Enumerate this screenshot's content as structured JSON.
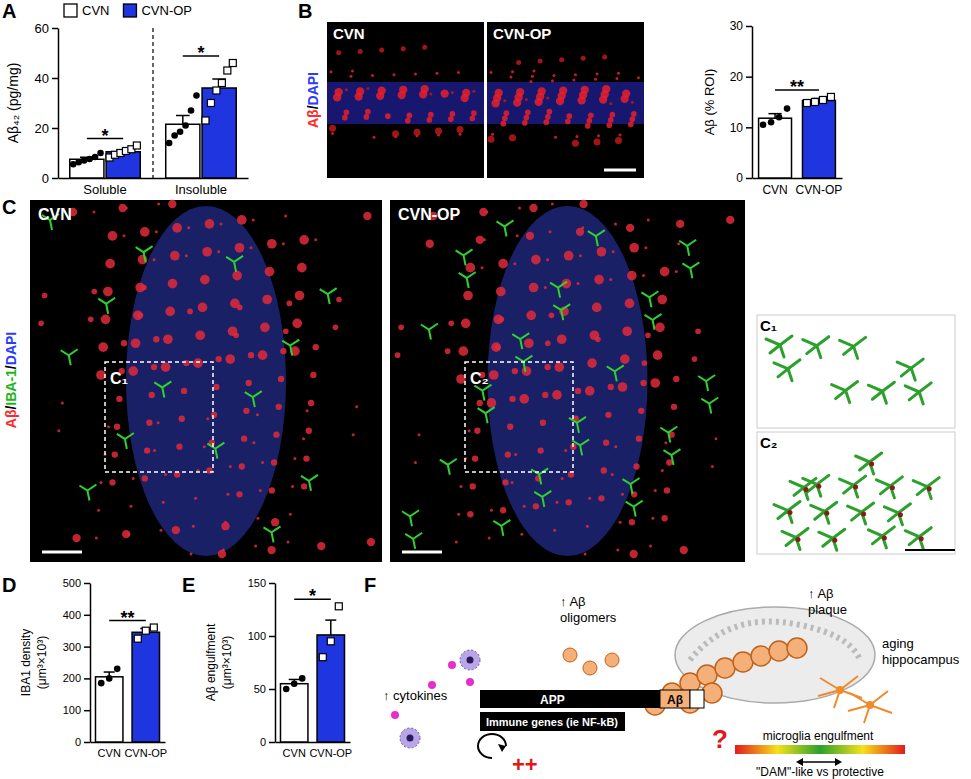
{
  "panel_labels": [
    "A",
    "B",
    "C",
    "D",
    "E",
    "F"
  ],
  "chart_data": [
    {
      "type": "bar",
      "y_label": "Aβ₄₂ (pg/mg)",
      "categories": [
        "Soluble",
        "Insoluble"
      ],
      "legend": "top-left",
      "series": [
        {
          "name": "CVN",
          "color": "#ffffff",
          "marker": "circle",
          "values": [
            7.5,
            21.5
          ],
          "errors": [
            0.8,
            3.5
          ],
          "points": [
            [
              5.5,
              6.3,
              7,
              7.6,
              8.4,
              10
            ],
            [
              14,
              17,
              18.5,
              21,
              27,
              33
            ]
          ]
        },
        {
          "name": "CVN-OP",
          "color": "#1f35e0",
          "marker": "square",
          "values": [
            10.5,
            36
          ],
          "errors": [
            0.8,
            3.6
          ],
          "points": [
            [
              8.2,
              9.3,
              10,
              10.8,
              11.5,
              13
            ],
            [
              23,
              30,
              35,
              38,
              43,
              46
            ]
          ]
        }
      ],
      "ylim": [
        0,
        60
      ],
      "yticks": [
        0,
        20,
        40,
        60
      ],
      "annotations": [
        {
          "text": "*",
          "category": "Soluble"
        },
        {
          "text": "*",
          "category": "Insoluble"
        }
      ]
    },
    {
      "type": "bar",
      "y_label": "Aβ (% ROI)",
      "categories": [
        "CVN",
        "CVN-OP"
      ],
      "colors": [
        "#ffffff",
        "#1f35e0"
      ],
      "values": [
        11.8,
        15.3
      ],
      "errors": [
        0.9,
        0.4
      ],
      "points": [
        [
          10.5,
          11,
          12,
          13.7
        ],
        [
          14.8,
          15,
          15.4,
          16
        ]
      ],
      "ylim": [
        0,
        30
      ],
      "yticks": [
        0,
        10,
        20,
        30
      ],
      "annotations": [
        {
          "text": "**"
        }
      ]
    },
    {
      "type": "bar",
      "y_label": [
        "IBA1 density",
        "(μm³×10³)"
      ],
      "categories": [
        "CVN",
        "CVN-OP"
      ],
      "colors": [
        "#ffffff",
        "#1f35e0"
      ],
      "values": [
        205,
        345
      ],
      "errors": [
        15,
        12
      ],
      "points": [
        [
          185,
          200,
          230
        ],
        [
          325,
          350,
          360
        ]
      ],
      "ylim": [
        0,
        500
      ],
      "yticks": [
        0,
        100,
        200,
        300,
        400,
        500
      ],
      "annotations": [
        {
          "text": "**"
        }
      ]
    },
    {
      "type": "bar",
      "y_label": [
        "Aβ engulfment",
        "(μm³×10³)"
      ],
      "categories": [
        "CVN",
        "CVN-OP"
      ],
      "colors": [
        "#ffffff",
        "#1f35e0"
      ],
      "values": [
        55,
        101
      ],
      "errors": [
        4,
        14
      ],
      "points": [
        [
          50,
          55,
          60
        ],
        [
          80,
          95,
          128
        ]
      ],
      "ylim": [
        0,
        150
      ],
      "yticks": [
        0,
        50,
        100,
        150
      ],
      "annotations": [
        {
          "text": "*"
        }
      ]
    }
  ],
  "images": {
    "B": {
      "stain": [
        {
          "text": "Aβ",
          "color": "#ff2a2a"
        },
        {
          "text": "/",
          "color": "#000000"
        },
        {
          "text": "DAPI",
          "color": "#2a3cff"
        }
      ],
      "labels": [
        "CVN",
        "CVN-OP"
      ]
    },
    "C": {
      "stain": [
        {
          "text": "Aβ",
          "color": "#ff2a2a"
        },
        {
          "text": "/",
          "color": "#000000"
        },
        {
          "text": "IBA-1",
          "color": "#1fb51f"
        },
        {
          "text": "/",
          "color": "#000000"
        },
        {
          "text": "DAPI",
          "color": "#2a3cff"
        }
      ],
      "labels": [
        "CVN",
        "CVN-OP"
      ],
      "insets": [
        "C₁",
        "C₂"
      ]
    }
  },
  "diagram": {
    "cytokines": "↑ cytokines",
    "app": "APP",
    "abeta": "Aβ",
    "immune_genes": "Immune genes (ie NF-kB)",
    "oligomers": [
      "↑ Aβ",
      "oligomers"
    ],
    "plaque": [
      "↑ Aβ",
      "plaque"
    ],
    "hippocampus": [
      "aging",
      "hippocampus"
    ],
    "engulfment": "microglia engulfment",
    "phenotypes": "\"DAM\"-like vs protective",
    "feedback": "++",
    "question": "?"
  }
}
